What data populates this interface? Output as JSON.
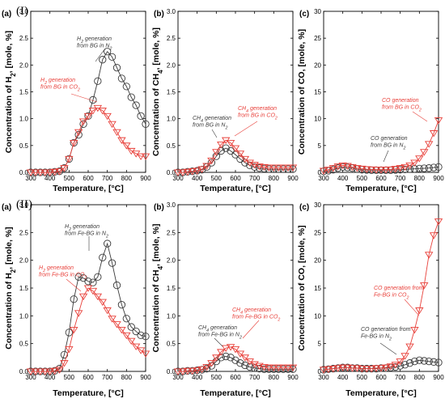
{
  "rows": [
    {
      "label": "(I)",
      "x": 20,
      "y": 14
    },
    {
      "label": "(II)",
      "x": 20,
      "y": 253
    }
  ],
  "colors": {
    "n2": "#3a3a3a",
    "co2": "#e8403a",
    "frame": "#000000"
  },
  "chart_data": [
    {
      "type": "line",
      "row": "I",
      "panel": "(a)",
      "xlabel": "Temperature, [°C]",
      "ylabel": "Concentration of H₂, [mole, %]",
      "xlim": [
        300,
        900
      ],
      "ylim": [
        0,
        3.0
      ],
      "xticks": [
        300,
        400,
        500,
        600,
        700,
        800,
        900
      ],
      "yticks": [
        0.0,
        0.5,
        1.0,
        1.5,
        2.0,
        2.5,
        3.0
      ],
      "ytick_decimals": 1,
      "series": [
        {
          "name": "H₂ generation from BG in N₂",
          "marker": "circle",
          "color": "#3a3a3a",
          "x": [
            300,
            325,
            350,
            375,
            400,
            425,
            450,
            475,
            500,
            525,
            550,
            575,
            600,
            625,
            650,
            675,
            700,
            725,
            750,
            775,
            800,
            825,
            850,
            875,
            900
          ],
          "y": [
            0,
            0,
            0,
            0,
            0,
            0.01,
            0.02,
            0.08,
            0.25,
            0.55,
            0.7,
            0.9,
            1.05,
            1.35,
            1.7,
            2.1,
            2.25,
            2.15,
            1.95,
            1.75,
            1.6,
            1.4,
            1.25,
            1.05,
            0.9
          ]
        },
        {
          "name": "H₂ generation from BG in CO₂",
          "marker": "triangle",
          "color": "#e8403a",
          "x": [
            300,
            325,
            350,
            375,
            400,
            425,
            450,
            475,
            500,
            525,
            550,
            575,
            600,
            625,
            650,
            675,
            700,
            725,
            750,
            775,
            800,
            825,
            850,
            875,
            900
          ],
          "y": [
            0,
            0,
            0,
            0,
            0,
            0.01,
            0.02,
            0.08,
            0.25,
            0.55,
            0.75,
            0.95,
            1.05,
            1.15,
            1.2,
            1.15,
            1.05,
            0.9,
            0.75,
            0.6,
            0.5,
            0.4,
            0.35,
            0.3,
            0.3
          ]
        }
      ],
      "annotations": [
        {
          "lines": [
            "H₂ generation",
            "from BG in N₂"
          ],
          "color": "#3a3a3a"
        },
        {
          "lines": [
            "H₂ generation",
            "from BG in CO₂"
          ],
          "color": "#e8403a"
        }
      ]
    },
    {
      "type": "line",
      "row": "I",
      "panel": "(b)",
      "xlabel": "Temperature, [°C]",
      "ylabel": "Concentration of CH₄, [mole, %]",
      "xlim": [
        300,
        900
      ],
      "ylim": [
        0,
        3.0
      ],
      "xticks": [
        300,
        400,
        500,
        600,
        700,
        800,
        900
      ],
      "yticks": [
        0.0,
        0.5,
        1.0,
        1.5,
        2.0,
        2.5,
        3.0
      ],
      "ytick_decimals": 1,
      "series": [
        {
          "name": "CH₄ generation from BG in N₂",
          "marker": "circle",
          "color": "#3a3a3a",
          "x": [
            300,
            325,
            350,
            375,
            400,
            425,
            450,
            475,
            500,
            525,
            550,
            575,
            600,
            625,
            650,
            675,
            700,
            725,
            750,
            775,
            800,
            825,
            850,
            875,
            900
          ],
          "y": [
            0,
            0,
            0.01,
            0.02,
            0.03,
            0.05,
            0.1,
            0.18,
            0.3,
            0.4,
            0.45,
            0.4,
            0.33,
            0.25,
            0.18,
            0.13,
            0.1,
            0.08,
            0.07,
            0.06,
            0.06,
            0.06,
            0.06,
            0.06,
            0.06
          ]
        },
        {
          "name": "CH₄ generation from BG in CO₂",
          "marker": "triangle",
          "color": "#e8403a",
          "x": [
            300,
            325,
            350,
            375,
            400,
            425,
            450,
            475,
            500,
            525,
            550,
            575,
            600,
            625,
            650,
            675,
            700,
            725,
            750,
            775,
            800,
            825,
            850,
            875,
            900
          ],
          "y": [
            0,
            0,
            0.01,
            0.02,
            0.03,
            0.06,
            0.12,
            0.22,
            0.38,
            0.52,
            0.6,
            0.55,
            0.45,
            0.35,
            0.25,
            0.18,
            0.14,
            0.11,
            0.1,
            0.09,
            0.09,
            0.09,
            0.09,
            0.09,
            0.09
          ]
        }
      ],
      "annotations": [
        {
          "lines": [
            "CH₄ generation",
            "from BG in N₂"
          ],
          "color": "#3a3a3a"
        },
        {
          "lines": [
            "CH₄ generation",
            "from BG in CO₂"
          ],
          "color": "#e8403a"
        }
      ]
    },
    {
      "type": "line",
      "row": "I",
      "panel": "(c)",
      "xlabel": "Temperature, [°C]",
      "ylabel": "Concentration of CO, [mole, %]",
      "xlim": [
        300,
        900
      ],
      "ylim": [
        0,
        30
      ],
      "xticks": [
        300,
        400,
        500,
        600,
        700,
        800,
        900
      ],
      "yticks": [
        0,
        5,
        10,
        15,
        20,
        25,
        30
      ],
      "ytick_decimals": 0,
      "series": [
        {
          "name": "CO generation from BG in N₂",
          "marker": "circle",
          "color": "#3a3a3a",
          "x": [
            300,
            325,
            350,
            375,
            400,
            425,
            450,
            475,
            500,
            525,
            550,
            575,
            600,
            625,
            650,
            675,
            700,
            725,
            750,
            775,
            800,
            825,
            850,
            875,
            900
          ],
          "y": [
            0.2,
            0.3,
            0.5,
            0.8,
            1.0,
            0.9,
            0.8,
            0.6,
            0.5,
            0.45,
            0.4,
            0.4,
            0.4,
            0.4,
            0.4,
            0.45,
            0.5,
            0.55,
            0.6,
            0.65,
            0.7,
            0.75,
            0.8,
            0.9,
            1.0
          ]
        },
        {
          "name": "CO generation from BG in CO₂",
          "marker": "triangle",
          "color": "#e8403a",
          "x": [
            300,
            325,
            350,
            375,
            400,
            425,
            450,
            475,
            500,
            525,
            550,
            575,
            600,
            625,
            650,
            675,
            700,
            725,
            750,
            775,
            800,
            825,
            850,
            875,
            900
          ],
          "y": [
            0.3,
            0.5,
            0.8,
            1.1,
            1.3,
            1.2,
            1.0,
            0.8,
            0.7,
            0.6,
            0.55,
            0.5,
            0.5,
            0.5,
            0.55,
            0.65,
            0.8,
            1.0,
            1.3,
            1.8,
            2.6,
            3.8,
            5.3,
            7.3,
            9.7
          ]
        }
      ],
      "annotations": [
        {
          "lines": [
            "CO generation",
            "from BG in N₂"
          ],
          "color": "#3a3a3a"
        },
        {
          "lines": [
            "CO generation",
            "from BG in CO₂"
          ],
          "color": "#e8403a"
        }
      ]
    },
    {
      "type": "line",
      "row": "II",
      "panel": "(a)",
      "xlabel": "Temperature, [°C]",
      "ylabel": "Concentration of H₂, [mole, %]",
      "xlim": [
        300,
        900
      ],
      "ylim": [
        0,
        3.0
      ],
      "xticks": [
        300,
        400,
        500,
        600,
        700,
        800,
        900
      ],
      "yticks": [
        0.0,
        0.5,
        1.0,
        1.5,
        2.0,
        2.5,
        3.0
      ],
      "ytick_decimals": 1,
      "series": [
        {
          "name": "H₂ generation from Fe-BG in N₂",
          "marker": "circle",
          "color": "#3a3a3a",
          "x": [
            300,
            325,
            350,
            375,
            400,
            425,
            450,
            475,
            500,
            525,
            550,
            575,
            600,
            625,
            650,
            675,
            700,
            725,
            750,
            775,
            800,
            825,
            850,
            875,
            900
          ],
          "y": [
            0,
            0,
            0,
            0,
            0,
            0.01,
            0.05,
            0.3,
            0.7,
            1.3,
            1.7,
            1.68,
            1.62,
            1.6,
            1.7,
            2.05,
            2.3,
            1.95,
            1.55,
            1.2,
            0.95,
            0.8,
            0.72,
            0.65,
            0.63
          ]
        },
        {
          "name": "H₂ generation from Fe-BG in CO₂",
          "marker": "triangle",
          "color": "#e8403a",
          "x": [
            300,
            325,
            350,
            375,
            400,
            425,
            450,
            475,
            500,
            525,
            550,
            575,
            600,
            625,
            650,
            675,
            700,
            725,
            750,
            775,
            800,
            825,
            850,
            875,
            900
          ],
          "y": [
            0,
            0,
            0,
            0,
            0,
            0.01,
            0.03,
            0.15,
            0.4,
            0.75,
            1.05,
            1.35,
            1.5,
            1.45,
            1.35,
            1.25,
            1.1,
            0.95,
            0.85,
            0.75,
            0.65,
            0.55,
            0.45,
            0.38,
            0.32
          ]
        }
      ],
      "annotations": [
        {
          "lines": [
            "H₂ generation",
            "from Fe-BG in N₂"
          ],
          "color": "#3a3a3a"
        },
        {
          "lines": [
            "H₂ generation",
            "from Fe-BG in CO₂"
          ],
          "color": "#e8403a"
        }
      ]
    },
    {
      "type": "line",
      "row": "II",
      "panel": "(b)",
      "xlabel": "Temperature, [°C]",
      "ylabel": "Concentration of CH₄, [mole, %]",
      "xlim": [
        300,
        900
      ],
      "ylim": [
        0,
        3.0
      ],
      "xticks": [
        300,
        400,
        500,
        600,
        700,
        800,
        900
      ],
      "yticks": [
        0.0,
        0.5,
        1.0,
        1.5,
        2.0,
        2.5,
        3.0
      ],
      "ytick_decimals": 1,
      "series": [
        {
          "name": "CH₄ generation from Fe-BG in N₂",
          "marker": "circle",
          "color": "#3a3a3a",
          "x": [
            300,
            325,
            350,
            375,
            400,
            425,
            450,
            475,
            500,
            525,
            550,
            575,
            600,
            625,
            650,
            675,
            700,
            725,
            750,
            775,
            800,
            825,
            850,
            875,
            900
          ],
          "y": [
            0,
            0,
            0.01,
            0.01,
            0.02,
            0.03,
            0.05,
            0.1,
            0.18,
            0.25,
            0.27,
            0.25,
            0.2,
            0.15,
            0.11,
            0.08,
            0.06,
            0.05,
            0.04,
            0.04,
            0.04,
            0.04,
            0.04,
            0.04,
            0.04
          ]
        },
        {
          "name": "CH₄ generation from Fe-BG in CO₂",
          "marker": "triangle",
          "color": "#e8403a",
          "x": [
            300,
            325,
            350,
            375,
            400,
            425,
            450,
            475,
            500,
            525,
            550,
            575,
            600,
            625,
            650,
            675,
            700,
            725,
            750,
            775,
            800,
            825,
            850,
            875,
            900
          ],
          "y": [
            0,
            0,
            0.01,
            0.01,
            0.02,
            0.04,
            0.08,
            0.15,
            0.25,
            0.35,
            0.42,
            0.44,
            0.4,
            0.32,
            0.25,
            0.18,
            0.13,
            0.1,
            0.08,
            0.07,
            0.07,
            0.07,
            0.07,
            0.07,
            0.07
          ]
        }
      ],
      "annotations": [
        {
          "lines": [
            "CH₄ generation",
            "from Fe-BG in N₂"
          ],
          "color": "#3a3a3a"
        },
        {
          "lines": [
            "CH₄ generation",
            "from Fe-BG in CO₂"
          ],
          "color": "#e8403a"
        }
      ]
    },
    {
      "type": "line",
      "row": "II",
      "panel": "(c)",
      "xlabel": "Temperature, [°C]",
      "ylabel": "Concentration of CO, [mole, %]",
      "xlim": [
        300,
        900
      ],
      "ylim": [
        0,
        30
      ],
      "xticks": [
        300,
        400,
        500,
        600,
        700,
        800,
        900
      ],
      "yticks": [
        0,
        5,
        10,
        15,
        20,
        25,
        30
      ],
      "ytick_decimals": 0,
      "series": [
        {
          "name": "CO generation from Fe-BG in N₂",
          "marker": "circle",
          "color": "#3a3a3a",
          "x": [
            300,
            325,
            350,
            375,
            400,
            425,
            450,
            475,
            500,
            525,
            550,
            575,
            600,
            625,
            650,
            675,
            700,
            725,
            750,
            775,
            800,
            825,
            850,
            875,
            900
          ],
          "y": [
            0.3,
            0.4,
            0.5,
            0.6,
            0.7,
            0.7,
            0.6,
            0.6,
            0.5,
            0.5,
            0.5,
            0.5,
            0.6,
            0.6,
            0.7,
            0.8,
            1.0,
            1.2,
            1.5,
            1.8,
            2.0,
            1.9,
            1.8,
            1.7,
            1.6
          ]
        },
        {
          "name": "CO generation from Fe-BG in CO₂",
          "marker": "triangle",
          "color": "#e8403a",
          "x": [
            300,
            325,
            350,
            375,
            400,
            425,
            450,
            475,
            500,
            525,
            550,
            575,
            600,
            625,
            650,
            675,
            700,
            725,
            750,
            775,
            800,
            825,
            850,
            875,
            900
          ],
          "y": [
            0.3,
            0.4,
            0.5,
            0.6,
            0.7,
            0.7,
            0.6,
            0.6,
            0.5,
            0.5,
            0.5,
            0.6,
            0.6,
            0.7,
            0.9,
            1.2,
            1.8,
            2.8,
            4.5,
            7.5,
            11.0,
            15.5,
            21.0,
            24.5,
            27.0
          ]
        }
      ],
      "annotations": [
        {
          "lines": [
            "CO generation from",
            "Fe-BG in N₂"
          ],
          "color": "#3a3a3a"
        },
        {
          "lines": [
            "CO generation from",
            "Fe-BG in CO₂"
          ],
          "color": "#e8403a"
        }
      ]
    }
  ]
}
